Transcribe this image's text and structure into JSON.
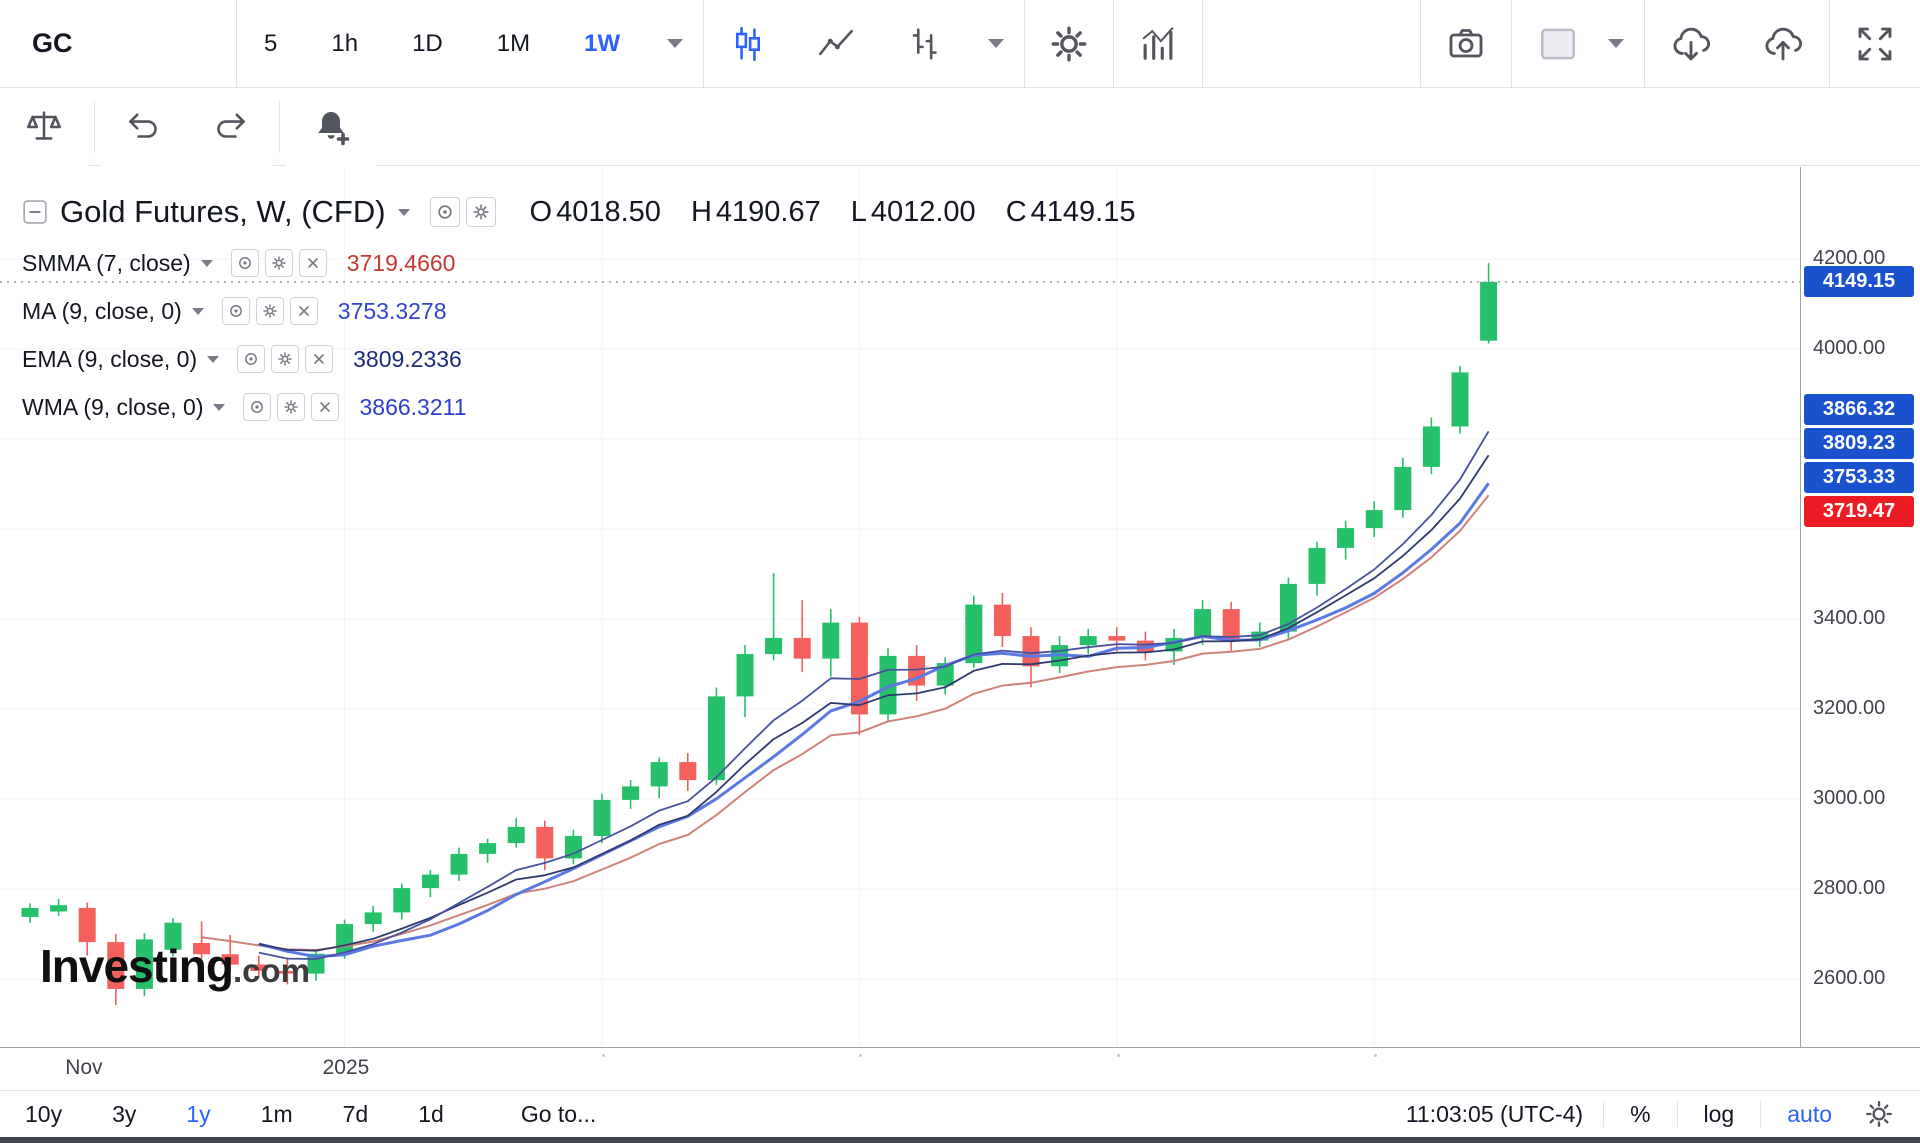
{
  "top_toolbar": {
    "symbol": "GC",
    "intervals": [
      {
        "label": "5",
        "active": false
      },
      {
        "label": "1h",
        "active": false
      },
      {
        "label": "1D",
        "active": false
      },
      {
        "label": "1M",
        "active": false
      },
      {
        "label": "1W",
        "active": true
      }
    ],
    "icon_buttons": [
      "interval-dropdown",
      "candlestick-style",
      "line-style",
      "bar-style",
      "style-dropdown",
      "settings",
      "indicators",
      "camera",
      "layout",
      "layout-dropdown",
      "cloud-download",
      "cloud-upload",
      "fullscreen"
    ],
    "accent_color": "#2962ff"
  },
  "second_toolbar": {
    "icon_buttons": [
      "scales",
      "undo",
      "redo",
      "alert-plus"
    ]
  },
  "chart_header": {
    "title": "Gold Futures, W, (CFD)",
    "ohlc": [
      {
        "k": "O",
        "v": "4018.50"
      },
      {
        "k": "H",
        "v": "4190.67"
      },
      {
        "k": "L",
        "v": "4012.00"
      },
      {
        "k": "C",
        "v": "4149.15"
      }
    ]
  },
  "indicators": [
    {
      "label": "SMMA (7, close)",
      "value": "3719.4660",
      "type": "smma",
      "period": 7,
      "value_color": "#c23a2f",
      "line_color": "#cd8379",
      "line_width": 2
    },
    {
      "label": "MA (9, close, 0)",
      "value": "3753.3278",
      "type": "sma",
      "period": 9,
      "value_color": "#3044cf",
      "line_color": "#5b79e3",
      "line_width": 3
    },
    {
      "label": "EMA (9, close, 0)",
      "value": "3809.2336",
      "type": "ema",
      "period": 9,
      "value_color": "#1d2b7d",
      "line_color": "#2e3a6e",
      "line_width": 1.8
    },
    {
      "label": "WMA (9, close, 0)",
      "value": "3866.3211",
      "type": "wma",
      "period": 9,
      "value_color": "#2d3ecb",
      "line_color": "#46529e",
      "line_width": 1.8
    }
  ],
  "chart_data": {
    "type": "candlestick",
    "title": "Gold Futures, Weekly, CFD",
    "up_color": "#26c06a",
    "down_color": "#f4605c",
    "current_price": 4149.15,
    "y_axis": {
      "range": [
        2450,
        4300
      ],
      "ticks": [
        {
          "label": "4200.00",
          "price": 4200
        },
        {
          "label": "4000.00",
          "price": 4000
        },
        {
          "label": "3400.00",
          "price": 3400
        },
        {
          "label": "3200.00",
          "price": 3200
        },
        {
          "label": "3000.00",
          "price": 3000
        },
        {
          "label": "2800.00",
          "price": 2800
        },
        {
          "label": "2600.00",
          "price": 2600
        }
      ]
    },
    "price_badges": [
      {
        "label": "4149.15",
        "price": 4149.15,
        "color": "#1952cc"
      },
      {
        "label": "3866.32",
        "price": 3866.32,
        "color": "#1952cc"
      },
      {
        "label": "3809.23",
        "price": 3809.23,
        "color": "#1952cc"
      },
      {
        "label": "3753.33",
        "price": 3753.33,
        "color": "#1952cc"
      },
      {
        "label": "3719.47",
        "price": 3719.47,
        "color": "#ec1c24"
      }
    ],
    "x_labels": [
      {
        "label": "Nov",
        "index": 2
      },
      {
        "label": "2025",
        "index": 11
      }
    ],
    "x_tick_indices": [
      2,
      11,
      20,
      29,
      38,
      47
    ],
    "candles": [
      [
        2738,
        2768,
        2725,
        2758
      ],
      [
        2750,
        2778,
        2740,
        2764
      ],
      [
        2758,
        2770,
        2652,
        2682
      ],
      [
        2682,
        2700,
        2542,
        2578
      ],
      [
        2578,
        2702,
        2562,
        2688
      ],
      [
        2665,
        2735,
        2650,
        2725
      ],
      [
        2680,
        2728,
        2645,
        2655
      ],
      [
        2655,
        2698,
        2618,
        2632
      ],
      [
        2632,
        2652,
        2605,
        2618
      ],
      [
        2618,
        2648,
        2588,
        2612
      ],
      [
        2612,
        2664,
        2596,
        2656
      ],
      [
        2656,
        2732,
        2645,
        2722
      ],
      [
        2722,
        2762,
        2705,
        2748
      ],
      [
        2748,
        2812,
        2732,
        2802
      ],
      [
        2802,
        2842,
        2782,
        2832
      ],
      [
        2832,
        2892,
        2818,
        2878
      ],
      [
        2878,
        2912,
        2858,
        2902
      ],
      [
        2902,
        2958,
        2892,
        2938
      ],
      [
        2938,
        2952,
        2842,
        2868
      ],
      [
        2868,
        2932,
        2855,
        2918
      ],
      [
        2918,
        3012,
        2902,
        2998
      ],
      [
        2998,
        3042,
        2978,
        3028
      ],
      [
        3028,
        3092,
        3002,
        3082
      ],
      [
        3082,
        3102,
        3018,
        3042
      ],
      [
        3042,
        3248,
        3032,
        3228
      ],
      [
        3228,
        3342,
        3182,
        3322
      ],
      [
        3322,
        3502,
        3308,
        3358
      ],
      [
        3358,
        3442,
        3282,
        3312
      ],
      [
        3312,
        3422,
        3272,
        3392
      ],
      [
        3392,
        3405,
        3142,
        3188
      ],
      [
        3188,
        3335,
        3172,
        3318
      ],
      [
        3318,
        3342,
        3218,
        3252
      ],
      [
        3252,
        3315,
        3232,
        3302
      ],
      [
        3302,
        3452,
        3292,
        3432
      ],
      [
        3432,
        3458,
        3338,
        3362
      ],
      [
        3362,
        3382,
        3248,
        3295
      ],
      [
        3295,
        3362,
        3280,
        3342
      ],
      [
        3342,
        3378,
        3322,
        3362
      ],
      [
        3362,
        3382,
        3328,
        3352
      ],
      [
        3352,
        3372,
        3308,
        3328
      ],
      [
        3328,
        3378,
        3298,
        3358
      ],
      [
        3358,
        3442,
        3342,
        3422
      ],
      [
        3422,
        3438,
        3328,
        3352
      ],
      [
        3352,
        3392,
        3338,
        3372
      ],
      [
        3372,
        3492,
        3355,
        3478
      ],
      [
        3478,
        3572,
        3452,
        3558
      ],
      [
        3558,
        3618,
        3532,
        3602
      ],
      [
        3602,
        3662,
        3582,
        3642
      ],
      [
        3642,
        3758,
        3625,
        3738
      ],
      [
        3738,
        3848,
        3722,
        3828
      ],
      [
        3828,
        3962,
        3812,
        3948
      ],
      [
        4018.5,
        4190.67,
        4012.0,
        4149.15
      ]
    ]
  },
  "watermark": {
    "text_main": "Investing",
    "text_suffix": ".com"
  },
  "bottom_toolbar": {
    "ranges": [
      {
        "label": "10y",
        "active": false
      },
      {
        "label": "3y",
        "active": false
      },
      {
        "label": "1y",
        "active": true
      },
      {
        "label": "1m",
        "active": false
      },
      {
        "label": "7d",
        "active": false
      },
      {
        "label": "1d",
        "active": false
      }
    ],
    "goto": "Go to...",
    "clock": "11:03:05",
    "timezone": "(UTC-4)",
    "percent": "%",
    "log": "log",
    "auto": "auto"
  }
}
